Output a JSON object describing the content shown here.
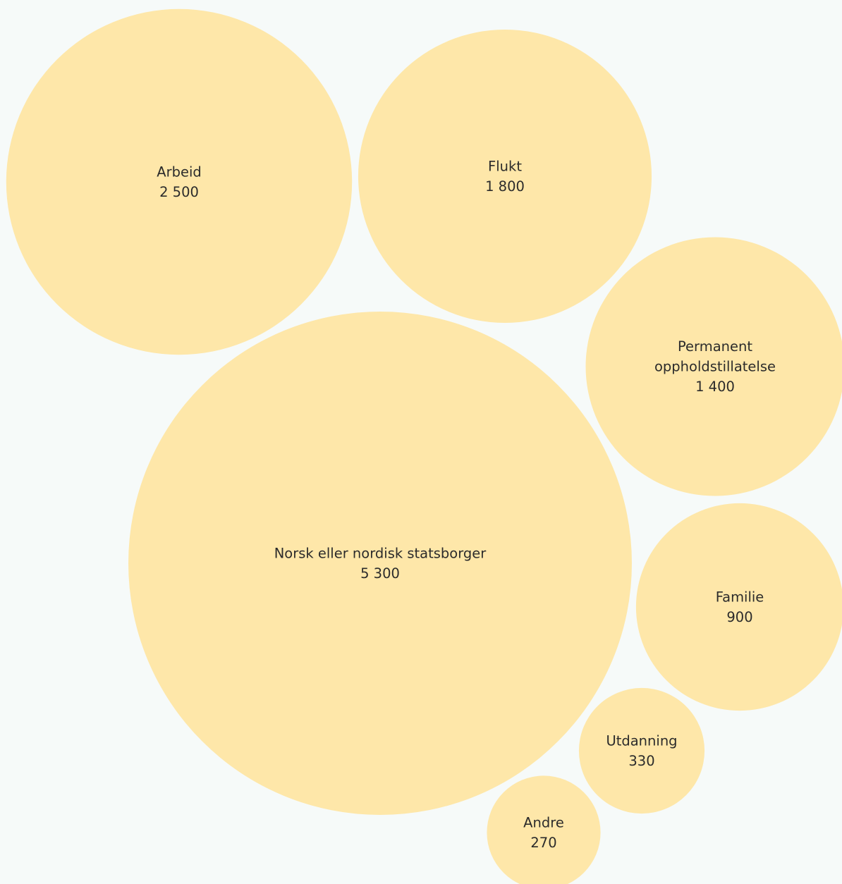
{
  "chart_data": {
    "type": "bubble",
    "title": "",
    "colors": {
      "bubble": "#fee7a9",
      "background": "#f6faf9",
      "text": "#2b2b2b"
    },
    "items": [
      {
        "label": "Arbeid",
        "value": 2500,
        "value_label": "2 500"
      },
      {
        "label": "Flukt",
        "value": 1800,
        "value_label": "1 800"
      },
      {
        "label": "Permanent oppholdstillatelse",
        "label_lines": [
          "Permanent",
          "oppholdstillatelse"
        ],
        "value": 1400,
        "value_label": "1 400"
      },
      {
        "label": "Norsk eller nordisk statsborger",
        "value": 5300,
        "value_label": "5 300"
      },
      {
        "label": "Familie",
        "value": 900,
        "value_label": "900"
      },
      {
        "label": "Utdanning",
        "value": 330,
        "value_label": "330"
      },
      {
        "label": "Andre",
        "value": 270,
        "value_label": "270"
      }
    ]
  }
}
